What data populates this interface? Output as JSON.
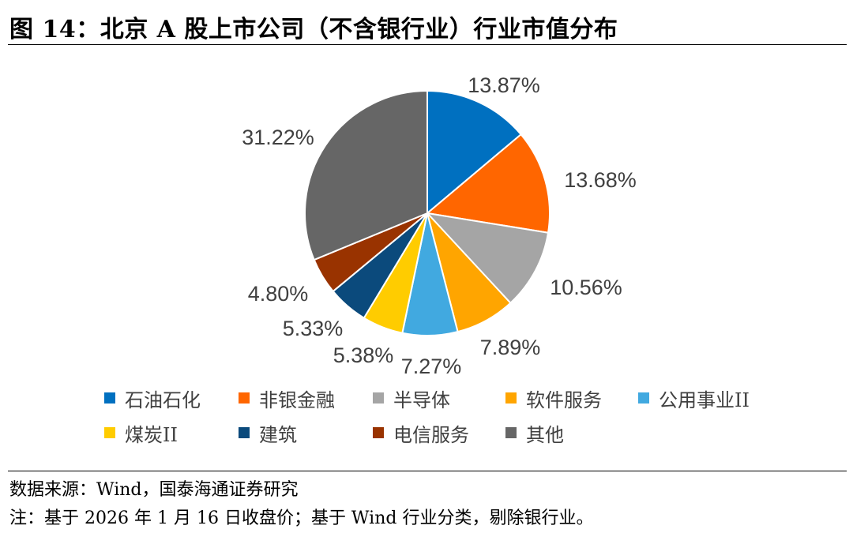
{
  "figure": {
    "title": "图 14：北京 A 股上市公司（不含银行业）行业市值分布"
  },
  "chart_data": {
    "type": "pie",
    "title": "",
    "slices": [
      {
        "name": "石油石化",
        "value": 13.87,
        "label": "13.87%",
        "color": "#0070C0"
      },
      {
        "name": "非银金融",
        "value": 13.68,
        "label": "13.68%",
        "color": "#FF6600"
      },
      {
        "name": "半导体",
        "value": 10.56,
        "label": "10.56%",
        "color": "#A5A5A5"
      },
      {
        "name": "软件服务",
        "value": 7.89,
        "label": "7.89%",
        "color": "#FFA500"
      },
      {
        "name": "公用事业II",
        "value": 7.27,
        "label": "7.27%",
        "color": "#41A9E0"
      },
      {
        "name": "煤炭II",
        "value": 5.38,
        "label": "5.38%",
        "color": "#FFCC00"
      },
      {
        "name": "建筑",
        "value": 5.33,
        "label": "5.33%",
        "color": "#0B4A7C"
      },
      {
        "name": "电信服务",
        "value": 4.8,
        "label": "4.80%",
        "color": "#993300"
      },
      {
        "name": "其他",
        "value": 31.22,
        "label": "31.22%",
        "color": "#666666"
      }
    ],
    "legend_placement": "bottom"
  },
  "notes": {
    "source": "数据来源：Wind，国泰海通证券研究",
    "remark": "注：基于 2026 年 1 月 16 日收盘价；基于 Wind 行业分类，剔除银行业。"
  }
}
